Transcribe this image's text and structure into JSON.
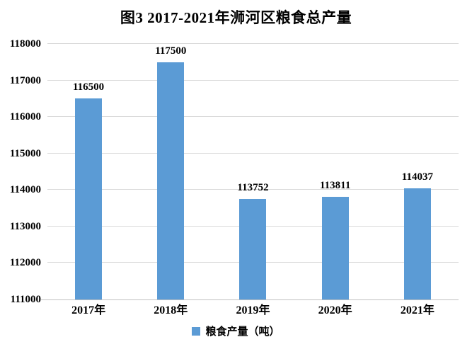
{
  "figure": {
    "title": "图3 2017-2021年浉河区粮食总产量"
  },
  "colors": {
    "bar": "#5B9BD5",
    "gridline": "#D9D9D9",
    "axis_line": "#BFBFBF",
    "text": "#000000",
    "background": "#FFFFFF"
  },
  "legend": {
    "label": "粮食产量（吨）"
  },
  "chart_data": {
    "type": "bar",
    "title": "图3 2017-2021年浉河区粮食总产量",
    "categories": [
      "2017年",
      "2018年",
      "2019年",
      "2020年",
      "2021年"
    ],
    "series": [
      {
        "name": "粮食产量（吨）",
        "values": [
          116500,
          117500,
          113752,
          113811,
          114037
        ]
      }
    ],
    "data_labels": [
      "116500",
      "117500",
      "113752",
      "113811",
      "114037"
    ],
    "xlabel": "",
    "ylabel": "",
    "ylim": [
      111000,
      118000
    ],
    "yticks": [
      111000,
      112000,
      113000,
      114000,
      115000,
      116000,
      117000,
      118000
    ],
    "grid": true,
    "legend_entries": [
      "粮食产量（吨）"
    ],
    "legend_position": "bottom"
  }
}
